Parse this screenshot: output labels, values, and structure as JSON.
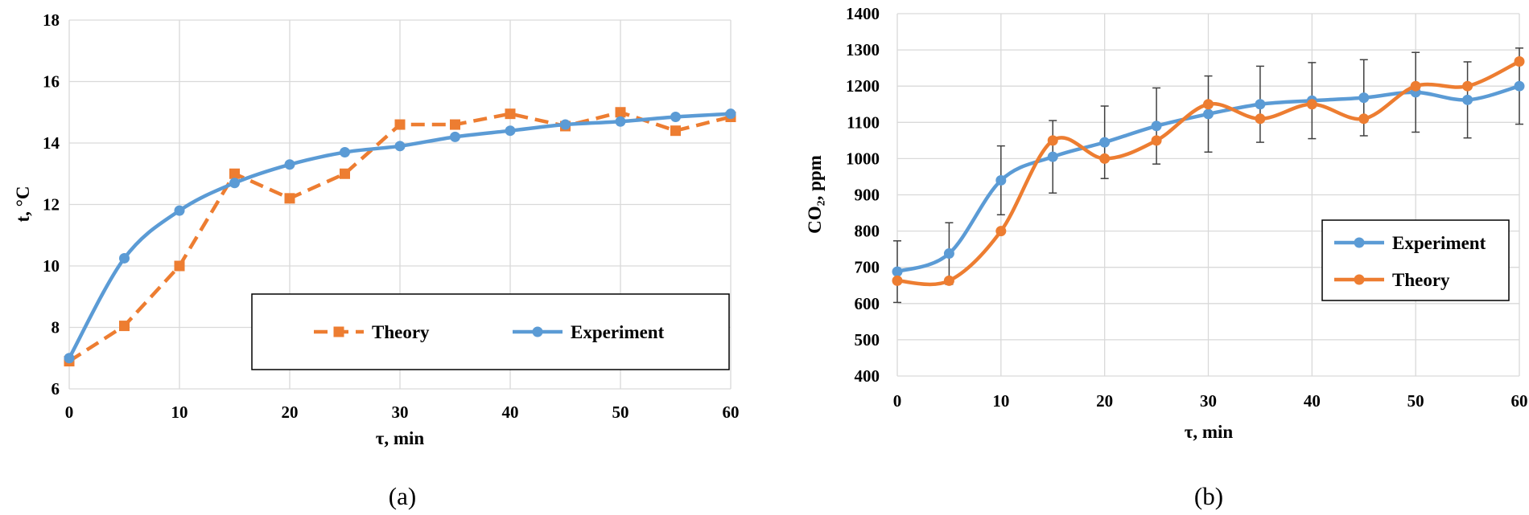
{
  "colors": {
    "experiment": "#5B9BD5",
    "theory": "#ED7D31",
    "grid": "#D9D9D9",
    "errorbar": "#404040",
    "legend_border": "#000000"
  },
  "chart_data": [
    {
      "id": "a",
      "type": "line",
      "caption": "(a)",
      "xlabel": "τ, min",
      "ylabel": "t, °C",
      "xlim": [
        0,
        60
      ],
      "ylim": [
        6,
        18
      ],
      "xticks": [
        0,
        10,
        20,
        30,
        40,
        50,
        60
      ],
      "yticks": [
        6,
        8,
        10,
        12,
        14,
        16,
        18
      ],
      "grid": true,
      "legend_position": "lower-right",
      "series": [
        {
          "name": "Theory",
          "style": "dashed",
          "marker": "square",
          "smooth": false,
          "x": [
            0,
            5,
            10,
            15,
            20,
            25,
            30,
            35,
            40,
            45,
            50,
            55,
            60
          ],
          "y": [
            6.9,
            8.05,
            10.0,
            13.0,
            12.2,
            13.0,
            14.6,
            14.6,
            14.95,
            14.55,
            15.0,
            14.4,
            14.85
          ]
        },
        {
          "name": "Experiment",
          "style": "solid",
          "marker": "circle",
          "smooth": true,
          "x": [
            0,
            5,
            10,
            15,
            20,
            25,
            30,
            35,
            40,
            45,
            50,
            55,
            60
          ],
          "y": [
            7.0,
            10.25,
            11.8,
            12.7,
            13.3,
            13.7,
            13.9,
            14.2,
            14.4,
            14.6,
            14.7,
            14.85,
            14.95
          ]
        }
      ]
    },
    {
      "id": "b",
      "type": "line",
      "caption": "(b)",
      "xlabel": "τ, min",
      "ylabel": "CO₂, ppm",
      "xlim": [
        0,
        60
      ],
      "ylim": [
        400,
        1400
      ],
      "xticks": [
        0,
        10,
        20,
        30,
        40,
        50,
        60
      ],
      "yticks": [
        400,
        500,
        600,
        700,
        800,
        900,
        1000,
        1100,
        1200,
        1300,
        1400
      ],
      "grid": true,
      "legend_position": "right",
      "series": [
        {
          "name": "Experiment",
          "style": "solid",
          "marker": "circle",
          "smooth": true,
          "x": [
            0,
            5,
            10,
            15,
            20,
            25,
            30,
            35,
            40,
            45,
            50,
            55,
            60
          ],
          "y": [
            688,
            738,
            940,
            1005,
            1045,
            1090,
            1123,
            1150,
            1160,
            1168,
            1183,
            1162,
            1200
          ],
          "error": [
            85,
            85,
            95,
            100,
            100,
            105,
            105,
            105,
            105,
            105,
            110,
            105,
            105
          ]
        },
        {
          "name": "Theory",
          "style": "solid",
          "marker": "circle",
          "smooth": true,
          "x": [
            0,
            5,
            10,
            15,
            20,
            25,
            30,
            35,
            40,
            45,
            50,
            55,
            60
          ],
          "y": [
            663,
            663,
            800,
            1050,
            1000,
            1050,
            1150,
            1110,
            1150,
            1110,
            1200,
            1200,
            1268
          ]
        }
      ]
    }
  ]
}
